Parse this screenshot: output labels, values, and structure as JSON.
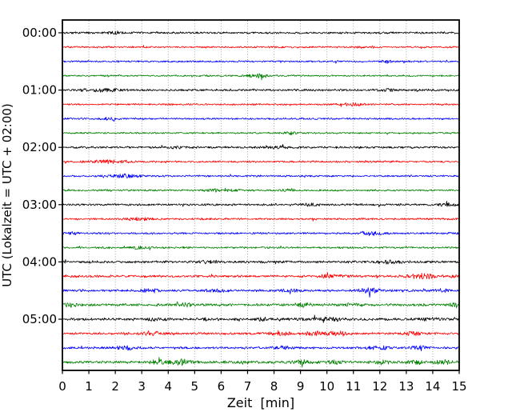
{
  "figure": {
    "kind": "seismogram-helicorder",
    "background": "#ffffff"
  },
  "chart_data": {
    "type": "line",
    "variant": "helicorder-dayplot",
    "title": "",
    "xlabel": "Zeit  [min]",
    "ylabel": "UTC (Lokalzeit = UTC + 02:00)",
    "x_ticks": [
      "0",
      "1",
      "2",
      "3",
      "4",
      "5",
      "6",
      "7",
      "8",
      "9",
      "10",
      "11",
      "12",
      "13",
      "14",
      "15"
    ],
    "x_range": [
      0,
      15
    ],
    "y_hour_labels": [
      "00:00",
      "01:00",
      "02:00",
      "03:00",
      "04:00",
      "05:00"
    ],
    "minutes_per_line": 15,
    "grid": {
      "vertical_dotted": true,
      "horizontal": false,
      "color": "#999999"
    },
    "legend": null,
    "colors": {
      "black": "#000000",
      "red": "#ff0000",
      "blue": "#0000ff",
      "green": "#008000",
      "grid": "#999999",
      "spine": "#000000"
    },
    "color_cycle": [
      "#000000",
      "#ff0000",
      "#0000ff",
      "#008000"
    ],
    "traces": [
      {
        "start": "00:00",
        "color": "#000000",
        "amp": 1.25,
        "bursts": [
          [
            2.0,
            1.6,
            0.25
          ]
        ]
      },
      {
        "start": "00:15",
        "color": "#ff0000",
        "amp": 1.05,
        "bursts": [
          [
            11.5,
            0.7,
            0.4
          ]
        ]
      },
      {
        "start": "00:30",
        "color": "#0000ff",
        "amp": 1.05,
        "bursts": [
          [
            12.3,
            1.5,
            0.22
          ]
        ]
      },
      {
        "start": "00:45",
        "color": "#008000",
        "amp": 1.0,
        "bursts": [
          [
            7.5,
            3.6,
            0.18
          ],
          [
            7.2,
            1.0,
            0.5
          ]
        ]
      },
      {
        "start": "01:00",
        "color": "#000000",
        "amp": 1.3,
        "bursts": [
          [
            1.5,
            1.5,
            0.7
          ],
          [
            12.4,
            1.1,
            0.3
          ]
        ]
      },
      {
        "start": "01:15",
        "color": "#ff0000",
        "amp": 1.05,
        "bursts": [
          [
            11.0,
            1.5,
            0.45
          ]
        ]
      },
      {
        "start": "01:30",
        "color": "#0000ff",
        "amp": 1.1,
        "bursts": [
          [
            1.8,
            1.2,
            0.3
          ]
        ]
      },
      {
        "start": "01:45",
        "color": "#008000",
        "amp": 1.0,
        "bursts": [
          [
            8.6,
            1.5,
            0.28
          ]
        ]
      },
      {
        "start": "02:00",
        "color": "#000000",
        "amp": 1.3,
        "bursts": [
          [
            4.3,
            1.2,
            0.3
          ],
          [
            8.2,
            0.9,
            0.4
          ]
        ]
      },
      {
        "start": "02:15",
        "color": "#ff0000",
        "amp": 1.1,
        "bursts": [
          [
            1.7,
            1.5,
            0.8
          ]
        ]
      },
      {
        "start": "02:30",
        "color": "#0000ff",
        "amp": 1.1,
        "bursts": [
          [
            2.4,
            1.6,
            0.55
          ]
        ]
      },
      {
        "start": "02:45",
        "color": "#008000",
        "amp": 1.1,
        "bursts": [
          [
            6.0,
            1.3,
            0.6
          ],
          [
            8.6,
            0.8,
            0.3
          ]
        ]
      },
      {
        "start": "03:00",
        "color": "#000000",
        "amp": 1.3,
        "bursts": [
          [
            9.4,
            1.3,
            0.25
          ],
          [
            14.6,
            1.3,
            0.3
          ]
        ]
      },
      {
        "start": "03:15",
        "color": "#ff0000",
        "amp": 1.15,
        "bursts": [
          [
            2.8,
            1.4,
            0.55
          ]
        ]
      },
      {
        "start": "03:30",
        "color": "#0000ff",
        "amp": 1.15,
        "bursts": [
          [
            0.4,
            1.1,
            0.25
          ],
          [
            11.7,
            2.4,
            0.4
          ]
        ]
      },
      {
        "start": "03:45",
        "color": "#008000",
        "amp": 1.1,
        "bursts": [
          [
            2.9,
            1.6,
            0.3
          ]
        ]
      },
      {
        "start": "04:00",
        "color": "#000000",
        "amp": 1.45,
        "bursts": [
          [
            5.5,
            1.2,
            0.35
          ],
          [
            12.4,
            1.7,
            0.45
          ]
        ]
      },
      {
        "start": "04:15",
        "color": "#ff0000",
        "amp": 1.35,
        "bursts": [
          [
            10.2,
            1.5,
            0.6
          ],
          [
            13.6,
            3.0,
            0.5
          ],
          [
            14.9,
            1.8,
            0.2
          ]
        ]
      },
      {
        "start": "04:30",
        "color": "#0000ff",
        "amp": 1.35,
        "bursts": [
          [
            3.3,
            2.2,
            0.3
          ],
          [
            5.8,
            1.2,
            0.35
          ],
          [
            8.6,
            1.4,
            0.35
          ],
          [
            11.65,
            2.8,
            0.35
          ],
          [
            14.3,
            1.4,
            0.3
          ]
        ]
      },
      {
        "start": "04:45",
        "color": "#008000",
        "amp": 1.55,
        "bursts": [
          [
            0.3,
            1.6,
            0.3
          ],
          [
            4.6,
            1.4,
            0.35
          ],
          [
            9.1,
            1.6,
            0.3
          ],
          [
            11.0,
            1.3,
            0.4
          ],
          [
            14.9,
            2.2,
            0.25
          ]
        ]
      },
      {
        "start": "05:00",
        "color": "#000000",
        "amp": 1.55,
        "bursts": [
          [
            3.5,
            1.1,
            0.4
          ],
          [
            7.6,
            1.5,
            0.3
          ],
          [
            10.0,
            1.5,
            0.8
          ],
          [
            13.9,
            1.2,
            0.35
          ]
        ]
      },
      {
        "start": "05:15",
        "color": "#ff0000",
        "amp": 1.4,
        "bursts": [
          [
            3.4,
            2.4,
            0.35
          ],
          [
            8.3,
            1.6,
            0.4
          ],
          [
            9.5,
            1.8,
            0.35
          ],
          [
            10.4,
            2.2,
            0.45
          ],
          [
            13.3,
            1.5,
            0.35
          ]
        ]
      },
      {
        "start": "05:30",
        "color": "#0000ff",
        "amp": 1.3,
        "bursts": [
          [
            2.4,
            2.6,
            0.3
          ],
          [
            8.3,
            1.5,
            0.35
          ],
          [
            11.9,
            2.1,
            0.4
          ],
          [
            13.5,
            1.6,
            0.35
          ]
        ]
      },
      {
        "start": "05:45",
        "color": "#008000",
        "amp": 1.6,
        "bursts": [
          [
            3.6,
            1.7,
            0.45
          ],
          [
            4.5,
            2.8,
            0.35
          ],
          [
            6.8,
            1.2,
            0.3
          ],
          [
            9.0,
            2.2,
            0.3
          ],
          [
            10.2,
            1.7,
            0.3
          ],
          [
            12.1,
            1.4,
            0.3
          ],
          [
            13.4,
            1.7,
            0.3
          ],
          [
            14.4,
            2.0,
            0.3
          ]
        ]
      }
    ]
  }
}
